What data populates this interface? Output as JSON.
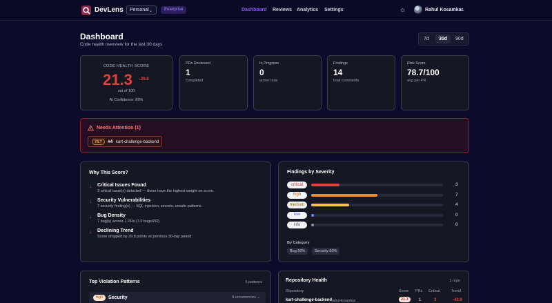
{
  "header": {
    "brand": "DevLens",
    "workspace": "Personal",
    "plan_badge": "Enterprise",
    "nav": [
      {
        "label": "Dashboard",
        "active": true
      },
      {
        "label": "Reviews",
        "active": false
      },
      {
        "label": "Analytics",
        "active": false
      },
      {
        "label": "Settings",
        "active": false
      }
    ],
    "user_name": "Rahul Kosamkar",
    "accent_color": "#8b5cf6"
  },
  "page": {
    "title": "Dashboard",
    "subtitle": "Code health overview for the last 30 days",
    "ranges": [
      "7d",
      "30d",
      "90d"
    ],
    "selected_range": "30d"
  },
  "health": {
    "label": "CODE HEALTH SCORE",
    "score": "21.3",
    "delta": "↓29.8",
    "out_of": "out of 100",
    "confidence": "AI Confidence: 89%",
    "score_color": "#e0413f"
  },
  "metrics": [
    {
      "label": "PRs Reviewed",
      "value": "1",
      "sub": "completed"
    },
    {
      "label": "In Progress",
      "value": "0",
      "sub": "active now"
    },
    {
      "label": "Findings",
      "value": "14",
      "sub": "total comments"
    },
    {
      "label": "Risk Score",
      "value": "78.7/100",
      "sub": "avg per PR"
    }
  ],
  "attention": {
    "title": "Needs Attention (1)",
    "items": [
      {
        "score": "78.7",
        "pr": "#4",
        "repo": "kart-challenge-backend"
      }
    ]
  },
  "why": {
    "title": "Why This Score?",
    "reasons": [
      {
        "title": "Critical Issues Found",
        "desc": "3 critical issue(s) detected — these have the highest weight on score."
      },
      {
        "title": "Security Vulnerabilities",
        "desc": "7 security finding(s) — SQL injection, secrets, unsafe patterns."
      },
      {
        "title": "Bug Density",
        "desc": "7 bug(s) across 1 PRs (7.0 bugs/PR)."
      },
      {
        "title": "Declining Trend",
        "desc": "Score dropped by 29.8 points vs previous 30-day period."
      }
    ]
  },
  "severity": {
    "title": "Findings by Severity",
    "max": 14,
    "rows": [
      {
        "label": "critical",
        "count": 3,
        "color": "#e0413f",
        "text_color": "#c62828"
      },
      {
        "label": "high",
        "count": 7,
        "color": "#f28c28",
        "text_color": "#c25a0a"
      },
      {
        "label": "medium",
        "count": 4,
        "color": "#f5c542",
        "text_color": "#8a6a00"
      },
      {
        "label": "low",
        "count": 0,
        "color": "#6b8cff",
        "text_color": "#3f5fd9"
      },
      {
        "label": "info",
        "count": 0,
        "color": "#8c90a0",
        "text_color": "#555a6a"
      }
    ],
    "category_label": "By Category",
    "categories": [
      "Bug 50%",
      "Security 50%"
    ]
  },
  "violations": {
    "title": "Top Violation Patterns",
    "count": "5 patterns",
    "rows": [
      {
        "severity": "high",
        "name": "Security",
        "occurrences": "6 occurrences"
      }
    ]
  },
  "repo_health": {
    "title": "Repository Health",
    "count": "1 repo",
    "columns": [
      "Repository",
      "Score",
      "PRs",
      "Critical",
      "Trend"
    ],
    "rows": [
      {
        "repo": "kart-challenge-backend",
        "owner": "rahul-kosamkar",
        "score": "21.3",
        "prs": "1",
        "critical": "3",
        "trend": "-43.8"
      }
    ]
  }
}
